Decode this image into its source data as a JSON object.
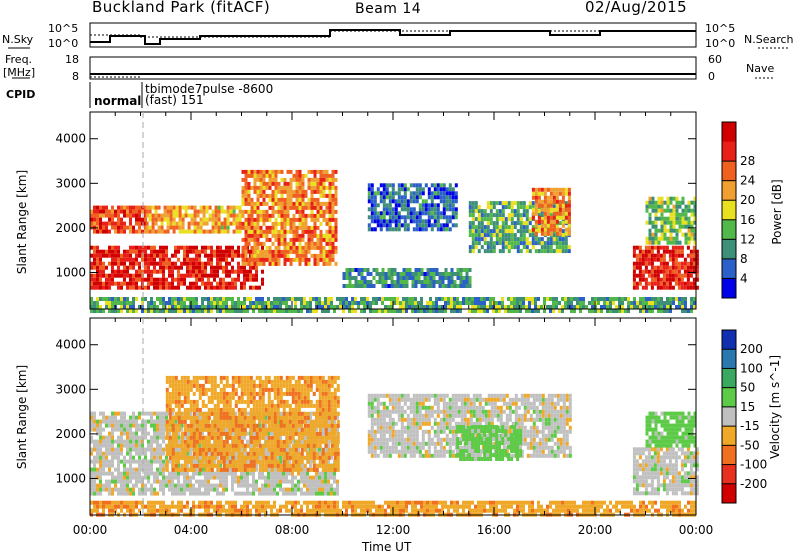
{
  "header": {
    "station": "Buckland Park (fitACF)",
    "beam": "Beam 14",
    "date": "02/Aug/2015"
  },
  "strip_labels": {
    "nsky": "N.Sky",
    "nsearch": "N.Search",
    "freq": "Freq.",
    "freq_unit": "[MHz]",
    "nave": "Nave",
    "cpid": "CPID",
    "nsky_ticks": [
      "10^5",
      "10^0"
    ],
    "nsearch_ticks": [
      "10^5",
      "10^0"
    ],
    "freq_ticks": [
      "18",
      "8"
    ],
    "nave_ticks": [
      "60",
      "0"
    ],
    "cpid_mode1": "normal",
    "cpid_mode2": "tbimode7pulse -8600",
    "cpid_mode3": "(fast) 151"
  },
  "chart_data": [
    {
      "type": "heatmap",
      "panel": "power",
      "ylabel": "Slant Range [km]",
      "y_ticks": [
        1000,
        2000,
        3000,
        4000
      ],
      "ylim": [
        180,
        4600
      ],
      "colorbar_label": "Power [dB]",
      "colorbar_ticks": [
        4,
        8,
        12,
        16,
        20,
        24,
        28
      ],
      "colorbar_colors": [
        "#0000e8",
        "#2a60c8",
        "#3d8f78",
        "#52b84a",
        "#e8e020",
        "#f0a030",
        "#f06020",
        "#e82018",
        "#d00000"
      ],
      "regions": [
        {
          "t0": 0.0,
          "t1": 6.8,
          "r0": 700,
          "r1": 1600,
          "v": 28
        },
        {
          "t0": 0.0,
          "t1": 2.2,
          "r0": 1900,
          "r1": 2500,
          "v": 26
        },
        {
          "t0": 2.2,
          "t1": 6.0,
          "r0": 1900,
          "r1": 2500,
          "v": 20
        },
        {
          "t0": 6.0,
          "t1": 9.8,
          "r0": 1200,
          "r1": 3300,
          "v": 22
        },
        {
          "t0": 10.0,
          "t1": 15.0,
          "r0": 700,
          "r1": 1100,
          "v": 10
        },
        {
          "t0": 11.0,
          "t1": 14.5,
          "r0": 2000,
          "r1": 3000,
          "v": 8
        },
        {
          "t0": 15.0,
          "t1": 19.0,
          "r0": 1500,
          "r1": 2600,
          "v": 12
        },
        {
          "t0": 17.5,
          "t1": 19.0,
          "r0": 1900,
          "r1": 2900,
          "v": 22
        },
        {
          "t0": 21.5,
          "t1": 24.0,
          "r0": 700,
          "r1": 1600,
          "v": 28
        },
        {
          "t0": 22.0,
          "t1": 24.0,
          "r0": 1700,
          "r1": 2700,
          "v": 14
        },
        {
          "t0": 0.0,
          "t1": 24.0,
          "r0": 180,
          "r1": 450,
          "v": 12
        }
      ]
    },
    {
      "type": "heatmap",
      "panel": "velocity",
      "ylabel": "Slant Range [km]",
      "y_ticks": [
        1000,
        2000,
        3000,
        4000
      ],
      "ylim": [
        180,
        4600
      ],
      "xlabel": "Time UT",
      "x_ticks": [
        "00:00",
        "04:00",
        "08:00",
        "12:00",
        "16:00",
        "20:00",
        "00:00"
      ],
      "xlim": [
        0,
        24
      ],
      "colorbar_label": "Velocity [m s^-1]",
      "colorbar_ticks": [
        "200",
        "100",
        "50",
        "15",
        "-15",
        "-50",
        "-100",
        "-200"
      ],
      "colorbar_colors": [
        "#1030b0",
        "#2a78b0",
        "#3aa860",
        "#5ecb48",
        "#c0c0c0",
        "#f0a828",
        "#f07020",
        "#e83020",
        "#d00000"
      ],
      "regions": [
        {
          "t0": 0.0,
          "t1": 9.8,
          "r0": 700,
          "r1": 2500,
          "v": 0
        },
        {
          "t0": 3.0,
          "t1": 9.8,
          "r0": 1200,
          "r1": 3300,
          "v": -40
        },
        {
          "t0": 11.0,
          "t1": 19.0,
          "r0": 1500,
          "r1": 2900,
          "v": 0
        },
        {
          "t0": 14.5,
          "t1": 17.0,
          "r0": 1400,
          "r1": 2200,
          "v": 30
        },
        {
          "t0": 21.5,
          "t1": 24.0,
          "r0": 700,
          "r1": 1700,
          "v": 0
        },
        {
          "t0": 22.0,
          "t1": 24.0,
          "r0": 1700,
          "r1": 2500,
          "v": 30
        },
        {
          "t0": 0.0,
          "t1": 24.0,
          "r0": 180,
          "r1": 500,
          "v": -40
        }
      ]
    }
  ]
}
